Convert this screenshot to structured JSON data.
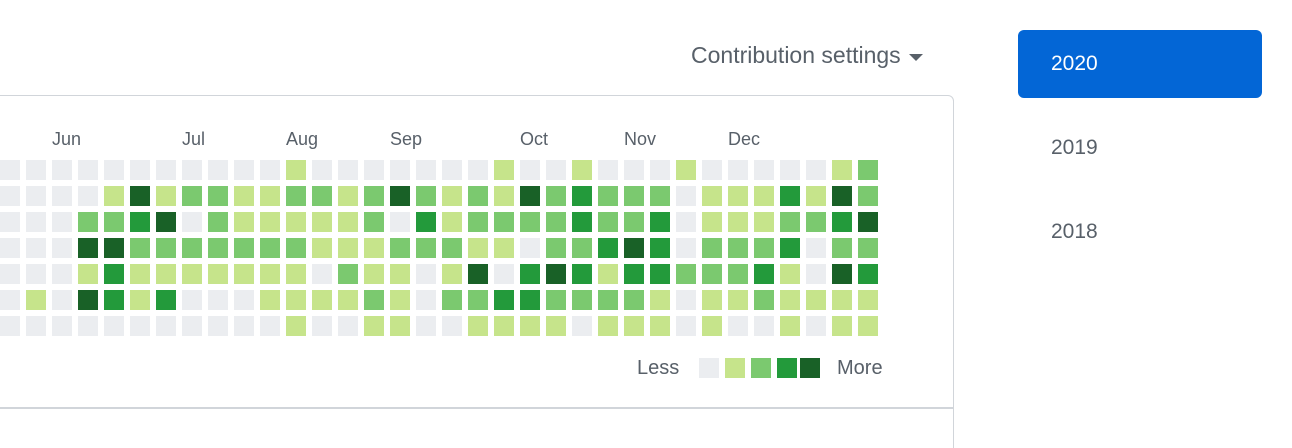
{
  "header": {
    "contribution_settings_label": "Contribution settings",
    "caret_icon": "triangle-down-icon"
  },
  "graph": {
    "months": [
      {
        "label": "Jun",
        "col": 2
      },
      {
        "label": "Jul",
        "col": 7
      },
      {
        "label": "Aug",
        "col": 11
      },
      {
        "label": "Sep",
        "col": 15
      },
      {
        "label": "Oct",
        "col": 20
      },
      {
        "label": "Nov",
        "col": 24
      },
      {
        "label": "Dec",
        "col": 28
      }
    ],
    "level_colors": [
      "#ebedf0",
      "#c6e48b",
      "#7bc96f",
      "#239a3b",
      "#196127"
    ],
    "rows": [
      [
        0,
        0,
        0,
        0,
        0,
        0,
        0,
        0,
        0,
        0,
        0,
        1,
        0,
        0,
        0,
        0,
        0,
        0,
        0,
        1,
        0,
        0,
        1,
        0,
        0,
        0,
        1,
        0,
        0,
        0,
        0,
        0,
        1,
        2
      ],
      [
        0,
        0,
        0,
        0,
        1,
        4,
        1,
        2,
        2,
        1,
        1,
        2,
        2,
        1,
        2,
        4,
        2,
        1,
        2,
        1,
        4,
        2,
        3,
        2,
        2,
        2,
        0,
        1,
        1,
        1,
        3,
        1,
        4,
        2
      ],
      [
        0,
        0,
        0,
        2,
        2,
        3,
        4,
        0,
        2,
        1,
        1,
        1,
        1,
        1,
        2,
        0,
        3,
        1,
        2,
        2,
        2,
        2,
        3,
        2,
        2,
        3,
        0,
        1,
        1,
        1,
        2,
        2,
        3,
        4
      ],
      [
        0,
        0,
        0,
        4,
        4,
        2,
        2,
        2,
        2,
        2,
        2,
        2,
        1,
        1,
        1,
        2,
        2,
        2,
        1,
        1,
        0,
        2,
        2,
        3,
        4,
        3,
        0,
        2,
        2,
        2,
        3,
        0,
        2,
        2
      ],
      [
        0,
        0,
        0,
        1,
        3,
        1,
        1,
        1,
        1,
        1,
        1,
        1,
        0,
        2,
        1,
        1,
        0,
        1,
        4,
        0,
        3,
        4,
        3,
        1,
        3,
        3,
        2,
        2,
        2,
        3,
        1,
        0,
        4,
        3
      ],
      [
        0,
        1,
        0,
        4,
        3,
        1,
        3,
        0,
        0,
        0,
        1,
        1,
        1,
        1,
        2,
        1,
        0,
        2,
        2,
        3,
        3,
        2,
        2,
        2,
        2,
        1,
        0,
        1,
        1,
        2,
        1,
        1,
        1,
        1
      ],
      [
        0,
        0,
        0,
        0,
        0,
        0,
        0,
        0,
        0,
        0,
        0,
        1,
        0,
        0,
        1,
        1,
        0,
        0,
        1,
        1,
        1,
        1,
        0,
        1,
        1,
        1,
        0,
        1,
        0,
        0,
        1,
        0,
        1,
        1
      ]
    ],
    "legend": {
      "less": "Less",
      "more": "More"
    }
  },
  "years": [
    {
      "label": "2020",
      "active": true
    },
    {
      "label": "2019",
      "active": false
    },
    {
      "label": "2018",
      "active": false
    }
  ],
  "accent_color": "#0366d6"
}
